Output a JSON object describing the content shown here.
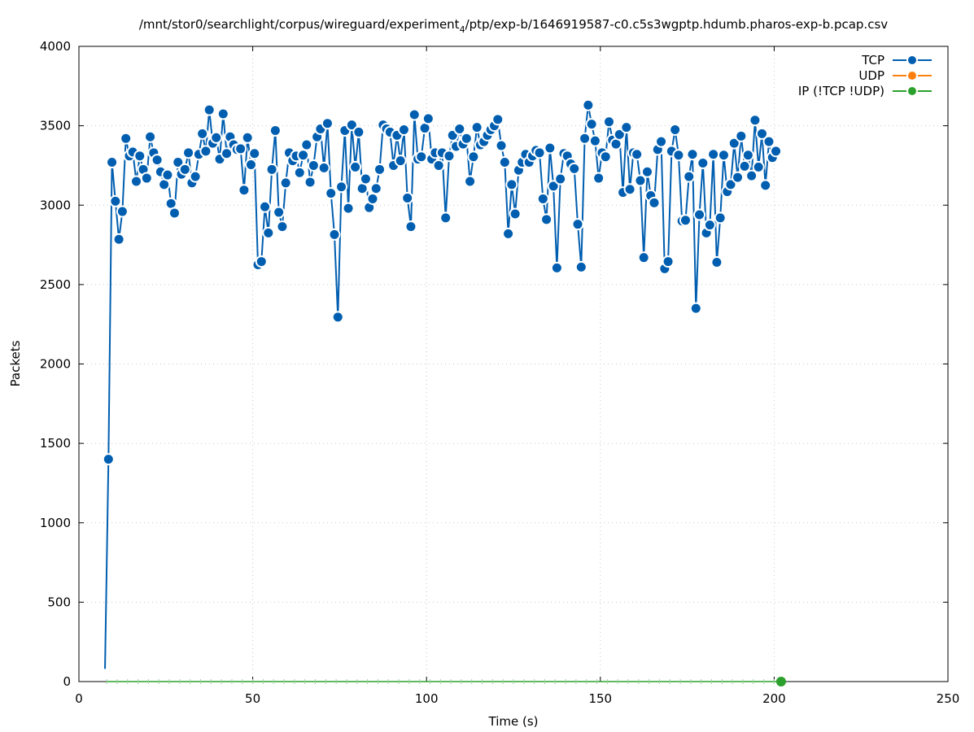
{
  "chart_data": {
    "type": "line",
    "title_main": "/mnt/stor0/searchlight/corpus/wireguard/experiment",
    "title_sub": "4",
    "title_rest": "/ptp/exp-b/1646919587-c0.c5s3wgptp.hdumb.pharos-exp-b.pcap.csv",
    "xlabel": "Time (s)",
    "ylabel": "Packets",
    "xlim": [
      0,
      250
    ],
    "ylim": [
      0,
      4000
    ],
    "xticks": [
      0,
      50,
      100,
      150,
      200,
      250
    ],
    "yticks": [
      0,
      500,
      1000,
      1500,
      2000,
      2500,
      3000,
      3500,
      4000
    ],
    "grid": true,
    "legend_position": "top-right",
    "series": [
      {
        "name": "TCP",
        "color": "#005eb0",
        "x_start": 7.5,
        "x_step": 1.0,
        "values": [
          80,
          1400,
          3270,
          3025,
          2785,
          2960,
          3420,
          3310,
          3335,
          3150,
          3310,
          3225,
          3170,
          3430,
          3330,
          3285,
          3210,
          3130,
          3190,
          3010,
          2950,
          3270,
          3195,
          3225,
          3330,
          3140,
          3180,
          3320,
          3450,
          3340,
          3600,
          3390,
          3425,
          3290,
          3575,
          3325,
          3430,
          3380,
          3350,
          3355,
          3095,
          3425,
          3255,
          3325,
          2625,
          2645,
          2990,
          2825,
          3225,
          3470,
          2955,
          2865,
          3140,
          3330,
          3280,
          3310,
          3205,
          3315,
          3380,
          3145,
          3250,
          3430,
          3480,
          3235,
          3515,
          3075,
          2815,
          2295,
          3115,
          3470,
          2980,
          3505,
          3240,
          3460,
          3105,
          3165,
          2985,
          3040,
          3105,
          3225,
          3505,
          3480,
          3460,
          3250,
          3440,
          3280,
          3475,
          3045,
          2865,
          3570,
          3290,
          3305,
          3485,
          3545,
          3290,
          3330,
          3250,
          3330,
          2920,
          3310,
          3440,
          3370,
          3480,
          3385,
          3420,
          3150,
          3305,
          3490,
          3380,
          3400,
          3440,
          3475,
          3500,
          3540,
          3375,
          3270,
          2820,
          3130,
          2945,
          3220,
          3270,
          3320,
          3270,
          3310,
          3345,
          3330,
          3040,
          2910,
          3360,
          3120,
          2605,
          3165,
          3325,
          3310,
          3260,
          3230,
          2880,
          2610,
          3420,
          3630,
          3510,
          3405,
          3170,
          3330,
          3305,
          3525,
          3410,
          3385,
          3445,
          3080,
          3490,
          3100,
          3330,
          3320,
          3155,
          2670,
          3210,
          3060,
          3015,
          3350,
          3400,
          2600,
          2645,
          3340,
          3475,
          3315,
          2900,
          2905,
          3180,
          3320,
          2350,
          2940,
          3265,
          2825,
          2875,
          3320,
          2640,
          2920,
          3315,
          3085,
          3130,
          3390,
          3175,
          3435,
          3245,
          3315,
          3185,
          3535,
          3240,
          3450,
          3125,
          3400,
          3300,
          3340
        ]
      },
      {
        "name": "UDP",
        "color": "#ff7f0e",
        "values": []
      },
      {
        "name": "IP (!TCP  !UDP)",
        "color": "#2ca02c",
        "x": [
          8,
          202
        ],
        "values": [
          0,
          0
        ]
      }
    ]
  }
}
